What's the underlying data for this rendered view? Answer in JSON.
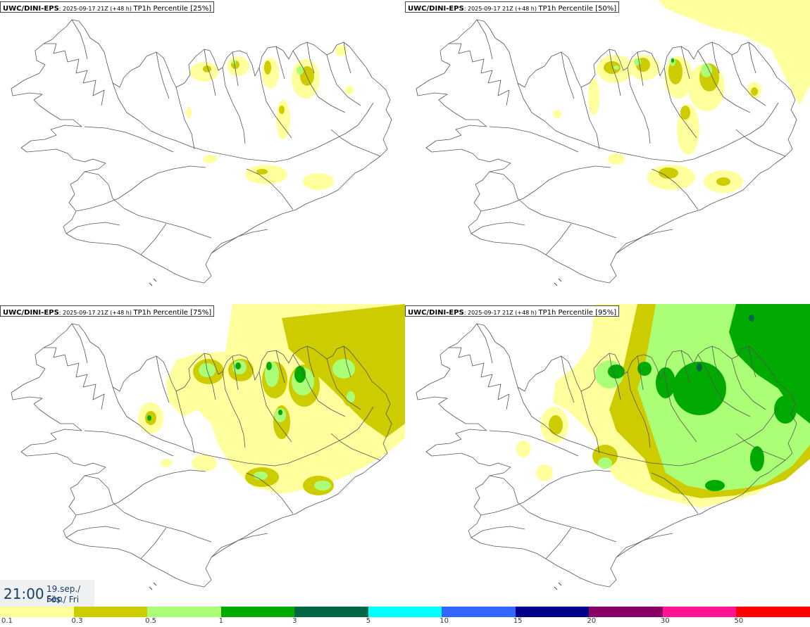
{
  "panels": [
    {
      "source": "UWC/DINI-EPS",
      "run": ": 2025-09-17 21Z (+48 h) ",
      "param": "TP1h Percentile [25%]",
      "level": 0
    },
    {
      "source": "UWC/DINI-EPS",
      "run": ": 2025-09-17 21Z (+48 h) ",
      "param": "TP1h Percentile [50%]",
      "level": 1
    },
    {
      "source": "UWC/DINI-EPS",
      "run": ": 2025-09-17 21Z (+48 h) ",
      "param": "TP1h Percentile [75%]",
      "level": 2
    },
    {
      "source": "UWC/DINI-EPS",
      "run": ": 2025-09-17 21Z (+48 h) ",
      "param": "TP1h Percentile [95%]",
      "level": 3
    }
  ],
  "clock": {
    "time": "21:00",
    "date_line1": "19.sep./ Sep",
    "date_line2": "Fös./ Fri"
  },
  "legend": {
    "colors": [
      "#ffff99",
      "#cccc00",
      "#aaff77",
      "#00aa00",
      "#006644",
      "#00ffff",
      "#3366ff",
      "#000088",
      "#880066",
      "#ff1493",
      "#ff0000"
    ],
    "labels": [
      "0.1",
      "0.3",
      "0.5",
      "1",
      "3",
      "5",
      "10",
      "15",
      "20",
      "30",
      "50"
    ]
  }
}
